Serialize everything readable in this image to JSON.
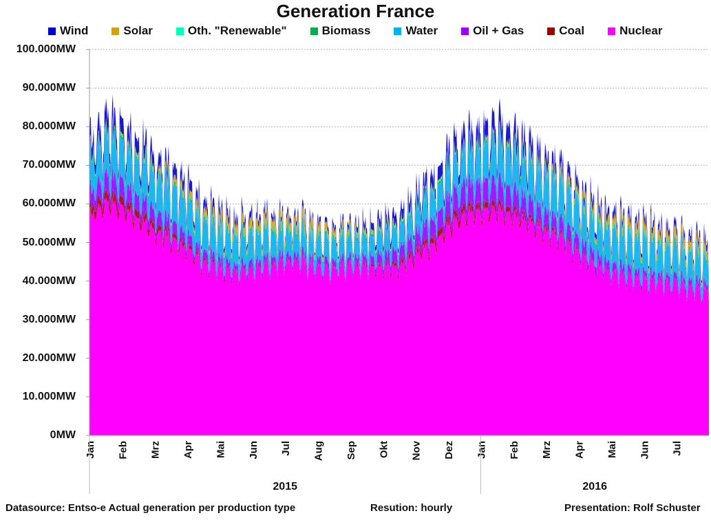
{
  "chart_data": {
    "type": "area",
    "stacked": true,
    "title": "Generation France",
    "xlabel": "",
    "ylabel": "",
    "ylim": [
      0,
      100000
    ],
    "y_ticks": [
      {
        "value": 0,
        "label": "0MW"
      },
      {
        "value": 10000,
        "label": "10.000MW"
      },
      {
        "value": 20000,
        "label": "20.000MW"
      },
      {
        "value": 30000,
        "label": "30.000MW"
      },
      {
        "value": 40000,
        "label": "40.000MW"
      },
      {
        "value": 50000,
        "label": "50.000MW"
      },
      {
        "value": 60000,
        "label": "60.000MW"
      },
      {
        "value": 70000,
        "label": "70.000MW"
      },
      {
        "value": 80000,
        "label": "80.000MW"
      },
      {
        "value": 90000,
        "label": "90.000MW"
      },
      {
        "value": 100000,
        "label": "100.000MW"
      }
    ],
    "grid": true,
    "legend_position": "top",
    "x_unit": "month index starting Jan 2015 (hourly resolution, approx. Jan 2015 - Jul 2016)",
    "x_range": [
      0,
      19
    ],
    "x_ticks": [
      {
        "value": 0,
        "label": "Jan"
      },
      {
        "value": 1,
        "label": "Feb"
      },
      {
        "value": 2,
        "label": "Mrz"
      },
      {
        "value": 3,
        "label": "Apr"
      },
      {
        "value": 4,
        "label": "Mai"
      },
      {
        "value": 5,
        "label": "Jun"
      },
      {
        "value": 6,
        "label": "Jul"
      },
      {
        "value": 7,
        "label": "Aug"
      },
      {
        "value": 8,
        "label": "Sep"
      },
      {
        "value": 9,
        "label": "Okt"
      },
      {
        "value": 10,
        "label": "Nov"
      },
      {
        "value": 11,
        "label": "Dez"
      },
      {
        "value": 12,
        "label": "Jan"
      },
      {
        "value": 13,
        "label": "Feb"
      },
      {
        "value": 14,
        "label": "Mrz"
      },
      {
        "value": 15,
        "label": "Apr"
      },
      {
        "value": 16,
        "label": "Mai"
      },
      {
        "value": 17,
        "label": "Jun"
      },
      {
        "value": 18,
        "label": "Jul"
      }
    ],
    "year_groups": [
      {
        "label": "2015",
        "from": 0,
        "to": 12
      },
      {
        "label": "2016",
        "from": 12,
        "to": 19
      }
    ],
    "x": [
      0,
      0.5,
      1,
      1.5,
      2,
      2.5,
      3,
      3.5,
      4,
      4.5,
      5,
      5.5,
      6,
      6.5,
      7,
      7.5,
      8,
      8.5,
      9,
      9.5,
      10,
      10.5,
      11,
      11.5,
      12,
      12.5,
      13,
      13.5,
      14,
      14.5,
      15,
      15.5,
      16,
      16.5,
      17,
      17.5,
      18,
      18.5,
      19
    ],
    "series": [
      {
        "name": "Nuclear",
        "color": "#ff00ff",
        "values": [
          57000,
          60000,
          59000,
          56000,
          53000,
          51000,
          48000,
          45000,
          43000,
          42000,
          43000,
          44000,
          45000,
          45000,
          43000,
          43000,
          44000,
          44000,
          43000,
          44000,
          47000,
          49000,
          54000,
          57000,
          58000,
          58000,
          57000,
          55000,
          53000,
          51000,
          47000,
          44000,
          42000,
          41000,
          40000,
          40000,
          39000,
          38000,
          37000
        ]
      },
      {
        "name": "Coal",
        "color": "#a00000",
        "values": [
          2000,
          2200,
          2000,
          1800,
          1500,
          1200,
          900,
          600,
          400,
          300,
          300,
          300,
          300,
          300,
          200,
          200,
          300,
          400,
          600,
          900,
          1200,
          1500,
          1800,
          1800,
          1500,
          1500,
          1300,
          1100,
          900,
          700,
          500,
          300,
          200,
          200,
          200,
          200,
          200,
          200,
          200
        ]
      },
      {
        "name": "Oil + Gas",
        "color": "#9900ff",
        "values": [
          4000,
          4500,
          4500,
          4000,
          3500,
          3000,
          2500,
          2000,
          1800,
          1500,
          1500,
          1500,
          1500,
          1500,
          1500,
          1500,
          1500,
          1800,
          2500,
          3500,
          4000,
          4500,
          5000,
          5500,
          5500,
          5500,
          5000,
          4500,
          4000,
          3500,
          3000,
          2500,
          2000,
          1800,
          1500,
          1500,
          1500,
          1500,
          1500
        ]
      },
      {
        "name": "Water",
        "color": "#00b0f0",
        "values": [
          8000,
          9000,
          9000,
          9000,
          9000,
          8500,
          8000,
          7500,
          7000,
          7000,
          7000,
          6500,
          6000,
          5500,
          5000,
          5000,
          5000,
          5000,
          5000,
          5500,
          6000,
          6500,
          7000,
          7500,
          8000,
          9000,
          9000,
          9000,
          9000,
          9000,
          8500,
          8000,
          8000,
          8000,
          8000,
          7500,
          7000,
          6500,
          6000
        ]
      },
      {
        "name": "Biomass",
        "color": "#00b050",
        "values": [
          600,
          600,
          600,
          600,
          600,
          600,
          600,
          600,
          600,
          600,
          600,
          600,
          600,
          600,
          600,
          600,
          600,
          600,
          600,
          600,
          600,
          600,
          600,
          600,
          600,
          600,
          600,
          600,
          600,
          600,
          600,
          600,
          600,
          600,
          600,
          600,
          600,
          600,
          600
        ]
      },
      {
        "name": "Oth. \"Renewable\"",
        "color": "#00ffbb",
        "values": [
          300,
          300,
          300,
          300,
          300,
          300,
          300,
          300,
          300,
          300,
          300,
          300,
          300,
          300,
          300,
          300,
          300,
          300,
          300,
          300,
          300,
          300,
          300,
          300,
          300,
          300,
          300,
          300,
          300,
          300,
          300,
          300,
          300,
          300,
          300,
          300,
          300,
          300,
          300
        ]
      },
      {
        "name": "Solar",
        "color": "#d4a017",
        "values": [
          300,
          400,
          500,
          700,
          900,
          1200,
          1500,
          1800,
          2000,
          2100,
          2200,
          2200,
          2100,
          2000,
          1800,
          1500,
          1200,
          900,
          600,
          400,
          300,
          300,
          200,
          200,
          300,
          400,
          500,
          700,
          900,
          1200,
          1500,
          1800,
          2000,
          2100,
          2200,
          2200,
          2200,
          2100,
          2000
        ]
      },
      {
        "name": "Wind",
        "color": "#0000cc",
        "values": [
          3500,
          4000,
          3500,
          3500,
          3000,
          2500,
          2500,
          2000,
          1800,
          1500,
          1500,
          1200,
          1200,
          1200,
          1000,
          1000,
          1200,
          1500,
          2000,
          2500,
          2500,
          3000,
          3500,
          3500,
          3500,
          4000,
          4000,
          3500,
          3000,
          2500,
          2200,
          2000,
          1800,
          1500,
          1500,
          1500,
          1500,
          1500,
          1500
        ]
      }
    ],
    "hourly_swing_mw": 12000
  },
  "legend_order": [
    {
      "name": "Wind",
      "color": "#0000cc"
    },
    {
      "name": "Solar",
      "color": "#d4a017"
    },
    {
      "name": "Oth. \"Renewable\"",
      "color": "#00ffbb"
    },
    {
      "name": "Biomass",
      "color": "#00b050"
    },
    {
      "name": "Water",
      "color": "#00b0f0"
    },
    {
      "name": "Oil + Gas",
      "color": "#9900ff"
    },
    {
      "name": "Coal",
      "color": "#a00000"
    },
    {
      "name": "Nuclear",
      "color": "#ff00ff"
    }
  ],
  "footer": {
    "source": "Datasource: Entso-e  Actual generation per production type",
    "resolution": "Resution: hourly",
    "presentation": "Presentation: Rolf Schuster"
  }
}
